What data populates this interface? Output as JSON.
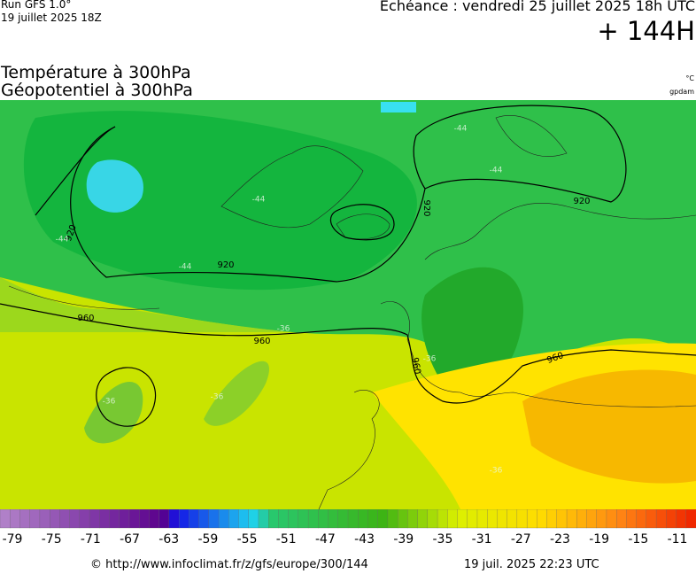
{
  "header": {
    "run": "Run GFS 1.0°",
    "run_date": "19 juillet 2025 18Z",
    "valid": "Echéance : vendredi 25 juillet 2025 18h UTC",
    "lead": "+ 144H"
  },
  "titles": {
    "line1": "Température à 300hPa",
    "line2": "Géopotentiel à 300hPa",
    "unit1": "°C",
    "unit2": "gpdam"
  },
  "map": {
    "contour_labels": [
      "920",
      "920",
      "920",
      "920",
      "960",
      "960",
      "960",
      "960"
    ],
    "isotherm_labels": [
      "-44",
      "-44",
      "-44",
      "-44",
      "-44",
      "-36",
      "-36",
      "-36",
      "-36",
      "-36"
    ]
  },
  "colorbar": {
    "labels": [
      -79,
      -75,
      -71,
      -67,
      -63,
      -59,
      -55,
      -51,
      -47,
      -43,
      -39,
      -35,
      -31,
      -27,
      -23,
      -19,
      -15,
      -11
    ]
  },
  "footer": {
    "url": "© http://www.infoclimat.fr/z/gfs/europe/300/144",
    "generated": "19 juil. 2025 22:23 UTC"
  }
}
